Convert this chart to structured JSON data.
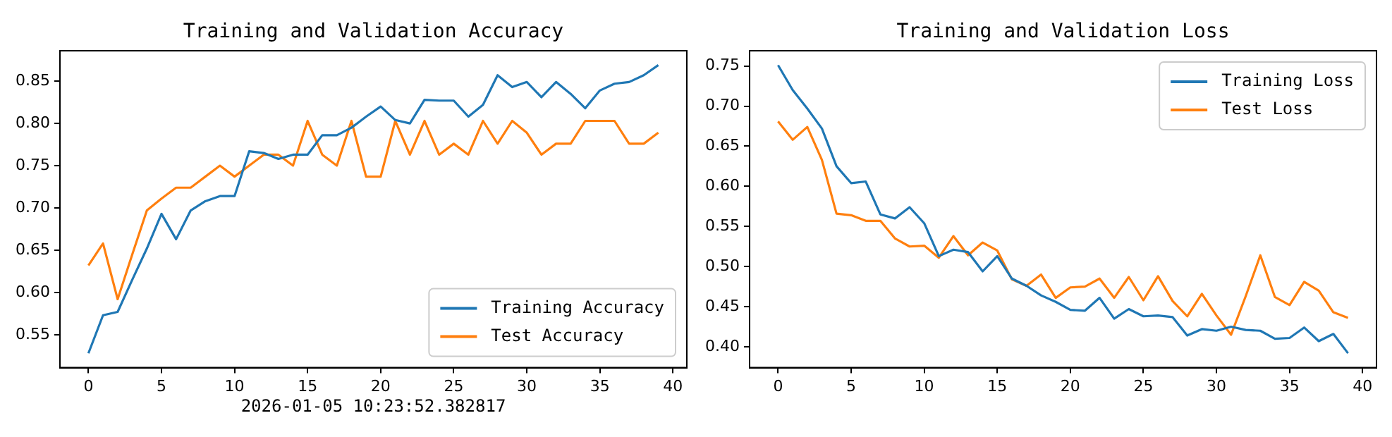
{
  "chart_data": [
    {
      "type": "line",
      "title": "Training and Validation Accuracy",
      "x": [
        0,
        1,
        2,
        3,
        4,
        5,
        6,
        7,
        8,
        9,
        10,
        11,
        12,
        13,
        14,
        15,
        16,
        17,
        18,
        19,
        20,
        21,
        22,
        23,
        24,
        25,
        26,
        27,
        28,
        29,
        30,
        31,
        32,
        33,
        34,
        35,
        36,
        37,
        38,
        39
      ],
      "xlim": [
        -1.95,
        40.95
      ],
      "xticks": [
        0,
        5,
        10,
        15,
        20,
        25,
        30,
        35,
        40
      ],
      "ylim": [
        0.511,
        0.886
      ],
      "yticks": [
        0.55,
        {
          "value": 0.6,
          "label": "0.60"
        },
        0.65,
        {
          "value": 0.7,
          "label": "0.70"
        },
        0.75,
        {
          "value": 0.8,
          "label": "0.80"
        },
        0.85
      ],
      "grid": false,
      "legend": "bottom right",
      "annotations": [
        "2026-01-05 10:23:52.382817"
      ],
      "series": [
        {
          "name": "Training Accuracy",
          "color": "#1f77b4",
          "values": [
            0.528,
            0.573,
            0.577,
            0.615,
            0.652,
            0.693,
            0.663,
            0.697,
            0.708,
            0.714,
            0.714,
            0.767,
            0.765,
            0.758,
            0.763,
            0.763,
            0.786,
            0.786,
            0.795,
            0.808,
            0.82,
            0.804,
            0.8,
            0.828,
            0.827,
            0.827,
            0.808,
            0.822,
            0.857,
            0.843,
            0.849,
            0.831,
            0.849,
            0.835,
            0.818,
            0.839,
            0.847,
            0.849,
            0.857,
            0.869
          ]
        },
        {
          "name": "Test Accuracy",
          "color": "#ff7f0e",
          "values": [
            0.632,
            0.658,
            0.592,
            0.645,
            0.697,
            0.711,
            0.724,
            0.724,
            0.737,
            0.75,
            0.737,
            0.75,
            0.763,
            0.763,
            0.75,
            0.803,
            0.763,
            0.75,
            0.803,
            0.737,
            0.737,
            0.803,
            0.763,
            0.803,
            0.763,
            0.776,
            0.763,
            0.803,
            0.776,
            0.803,
            0.789,
            0.763,
            0.776,
            0.776,
            0.803,
            0.803,
            0.803,
            0.776,
            0.776,
            0.789
          ]
        }
      ]
    },
    {
      "type": "line",
      "title": "Training and Validation Loss",
      "x": [
        0,
        1,
        2,
        3,
        4,
        5,
        6,
        7,
        8,
        9,
        10,
        11,
        12,
        13,
        14,
        15,
        16,
        17,
        18,
        19,
        20,
        21,
        22,
        23,
        24,
        25,
        26,
        27,
        28,
        29,
        30,
        31,
        32,
        33,
        34,
        35,
        36,
        37,
        38,
        39
      ],
      "xlim": [
        -1.95,
        40.95
      ],
      "xticks": [
        0,
        5,
        10,
        15,
        20,
        25,
        30,
        35,
        40
      ],
      "ylim": [
        0.374,
        0.769
      ],
      "yticks": [
        {
          "value": 0.4,
          "label": "0.40"
        },
        0.45,
        {
          "value": 0.5,
          "label": "0.50"
        },
        0.55,
        {
          "value": 0.6,
          "label": "0.60"
        },
        0.65,
        {
          "value": 0.7,
          "label": "0.70"
        },
        0.75
      ],
      "grid": false,
      "legend": "top right",
      "series": [
        {
          "name": "Training Loss",
          "color": "#1f77b4",
          "values": [
            0.751,
            0.72,
            0.697,
            0.672,
            0.625,
            0.604,
            0.606,
            0.565,
            0.56,
            0.574,
            0.554,
            0.513,
            0.521,
            0.518,
            0.494,
            0.513,
            0.485,
            0.476,
            0.464,
            0.456,
            0.446,
            0.445,
            0.461,
            0.435,
            0.447,
            0.438,
            0.439,
            0.437,
            0.414,
            0.422,
            0.42,
            0.425,
            0.421,
            0.42,
            0.41,
            0.411,
            0.424,
            0.407,
            0.416,
            0.392
          ]
        },
        {
          "name": "Test Loss",
          "color": "#ff7f0e",
          "values": [
            0.681,
            0.658,
            0.674,
            0.633,
            0.566,
            0.564,
            0.557,
            0.557,
            0.535,
            0.525,
            0.526,
            0.511,
            0.538,
            0.514,
            0.53,
            0.52,
            0.484,
            0.476,
            0.49,
            0.461,
            0.474,
            0.475,
            0.485,
            0.461,
            0.487,
            0.458,
            0.488,
            0.457,
            0.438,
            0.466,
            0.439,
            0.415,
            0.463,
            0.514,
            0.462,
            0.452,
            0.481,
            0.47,
            0.443,
            0.436
          ]
        }
      ]
    }
  ]
}
